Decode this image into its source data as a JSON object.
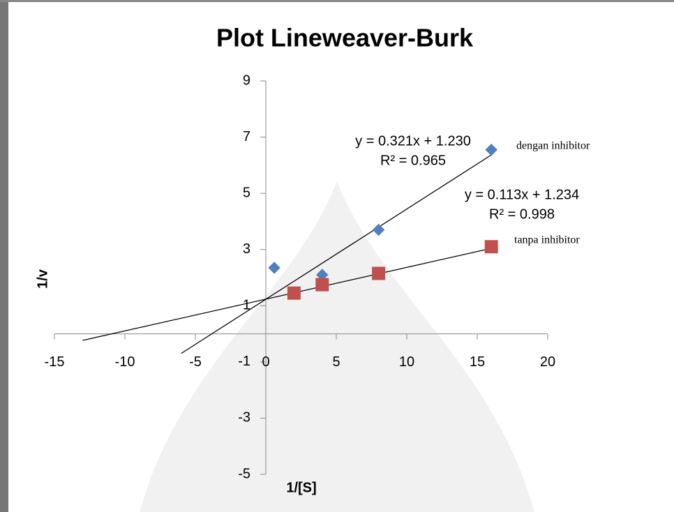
{
  "chart_data": {
    "type": "scatter",
    "title": "Plot Lineweaver-Burk",
    "x_label": "1/[S]",
    "y_label": "1/v",
    "xlim": [
      -15,
      20
    ],
    "xticks": [
      -15,
      -10,
      -5,
      0,
      5,
      10,
      15,
      20
    ],
    "ylim": [
      -5,
      9
    ],
    "yticks": [
      -5,
      -3,
      -1,
      1,
      3,
      5,
      7,
      9
    ],
    "series": [
      {
        "name": "dengan inhibitor",
        "color": "#4f81bd",
        "marker": "diamond",
        "x": [
          0.6,
          4,
          8,
          16
        ],
        "values": [
          2.35,
          2.1,
          3.7,
          6.55
        ],
        "trendline": {
          "equation": "y = 0.321x + 1.230",
          "r2": "R² = 0.965",
          "slope": 0.321,
          "intercept": 1.23,
          "x_from": -6,
          "x_to": 16
        }
      },
      {
        "name": "tanpa inhibitor",
        "color": "#c0504d",
        "marker": "square",
        "x": [
          2,
          4,
          8,
          16
        ],
        "values": [
          1.45,
          1.75,
          2.15,
          3.1
        ],
        "trendline": {
          "equation": "y = 0.113x + 1.234",
          "r2": "R² = 0.998",
          "slope": 0.113,
          "intercept": 1.234,
          "x_from": -13,
          "x_to": 16
        }
      }
    ]
  }
}
